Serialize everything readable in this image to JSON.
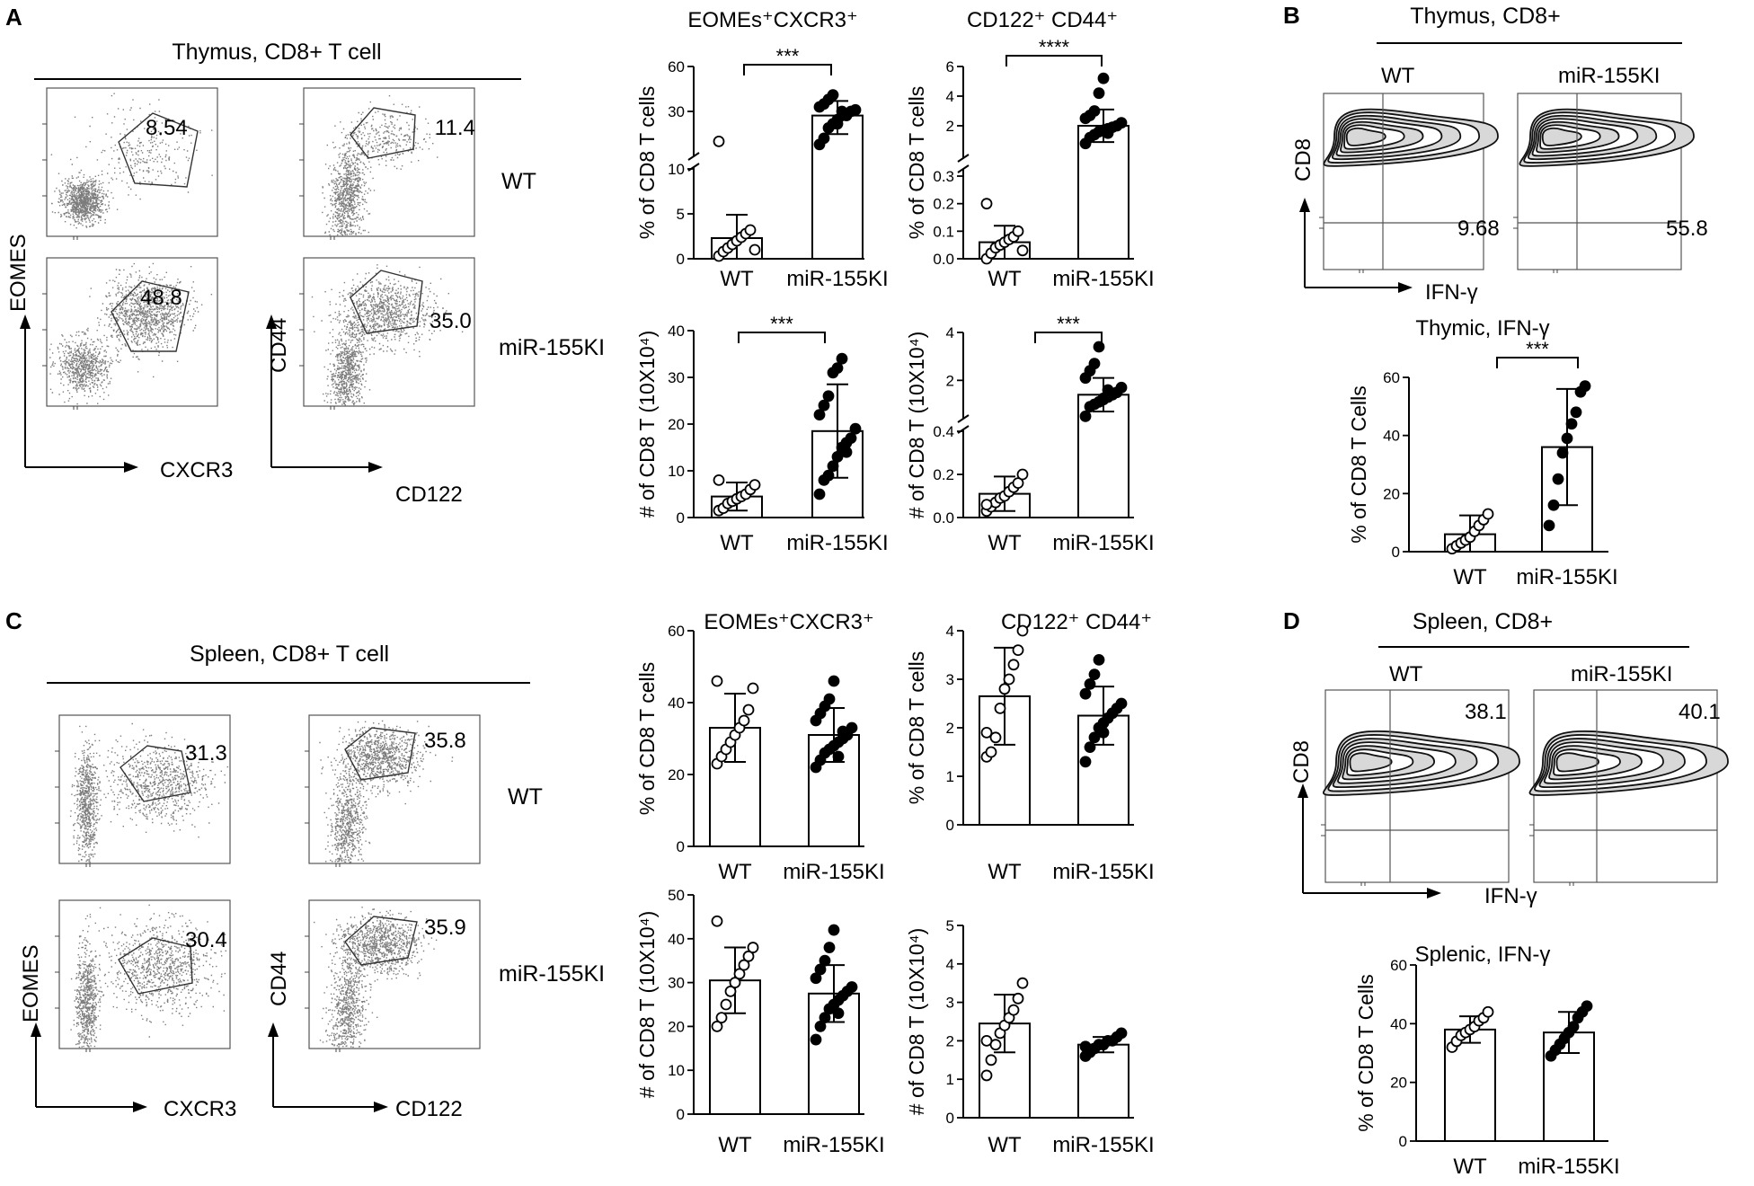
{
  "panels": {
    "A": {
      "letter": "A",
      "title": "Thymus, CD8+ T cell",
      "row_labels": [
        "WT",
        "miR-155KI"
      ],
      "flow_left": {
        "y_axis": "EOMES",
        "x_axis": "CXCR3",
        "gate_values": [
          "8.54",
          "48.8"
        ]
      },
      "flow_right": {
        "y_axis": "CD44",
        "x_axis": "CD122",
        "gate_values": [
          "11.4",
          "35.0"
        ]
      }
    },
    "B": {
      "letter": "B",
      "title": "Thymus,  CD8+",
      "columns": [
        "WT",
        "miR-155KI"
      ],
      "y_axis": "CD8",
      "x_axis": "IFN-γ",
      "quadrant_values": [
        "9.68",
        "55.8"
      ]
    },
    "C": {
      "letter": "C",
      "title": "Spleen, CD8+ T cell",
      "row_labels": [
        "WT",
        "miR-155KI"
      ],
      "flow_left": {
        "y_axis": "EOMES",
        "x_axis": "CXCR3",
        "gate_values": [
          "31.3",
          "30.4"
        ]
      },
      "flow_right": {
        "y_axis": "CD44",
        "x_axis": "CD122",
        "gate_values": [
          "35.8",
          "35.9"
        ]
      }
    },
    "D": {
      "letter": "D",
      "title": "Spleen,  CD8+",
      "columns": [
        "WT",
        "miR-155KI"
      ],
      "y_axis": "CD8",
      "x_axis": "IFN-γ",
      "quadrant_values": [
        "38.1",
        "40.1"
      ]
    }
  },
  "chart_data": [
    {
      "id": "A-pct-eomes",
      "type": "bar",
      "title": "EOMEs⁺CXCR3⁺",
      "ylabel": "% of CD8 T cells",
      "categories": [
        "WT",
        "miR-155KI"
      ],
      "significance": "***",
      "axis_break": true,
      "y_ticks": [
        "0",
        "5",
        "10",
        "30",
        "60"
      ],
      "series": [
        {
          "group": "WT",
          "mean": 2.3,
          "sd": 2.6,
          "points": [
            0.3,
            0.8,
            1.2,
            1.6,
            2.0,
            2.4,
            2.8,
            3.2,
            1.0,
            15.5
          ]
        },
        {
          "group": "miR-155KI",
          "mean": 28,
          "sd": 9,
          "points": [
            14,
            17,
            22,
            24,
            26,
            28,
            28,
            30,
            31,
            33,
            35,
            38,
            41,
            24,
            30
          ]
        }
      ]
    },
    {
      "id": "A-pct-cd122",
      "type": "bar",
      "title": "CD122⁺ CD44⁺",
      "ylabel": "% of CD8 T cells",
      "categories": [
        "WT",
        "miR-155KI"
      ],
      "significance": "****",
      "axis_break": true,
      "y_ticks": [
        "0.0",
        "0.1",
        "0.2",
        "0.3",
        "2",
        "4",
        "6"
      ],
      "series": [
        {
          "group": "WT",
          "mean": 0.06,
          "sd": 0.06,
          "points": [
            0.0,
            0.02,
            0.04,
            0.05,
            0.06,
            0.07,
            0.08,
            0.1,
            0.03,
            0.2
          ]
        },
        {
          "group": "miR-155KI",
          "mean": 2.0,
          "sd": 1.1,
          "points": [
            0.8,
            1.2,
            1.4,
            1.6,
            1.7,
            1.8,
            1.9,
            2.0,
            2.2,
            2.5,
            2.7,
            3.0,
            4.2,
            5.2,
            1.5
          ]
        }
      ]
    },
    {
      "id": "A-num-eomes",
      "type": "bar",
      "title": "",
      "ylabel": "# of CD8 T (10X10⁴)",
      "categories": [
        "WT",
        "miR-155KI"
      ],
      "significance": "***",
      "axis_break": false,
      "y_ticks": [
        "0",
        "10",
        "20",
        "30",
        "40"
      ],
      "series": [
        {
          "group": "WT",
          "mean": 4.5,
          "sd": 3.0,
          "points": [
            1.5,
            2,
            3,
            3.5,
            4,
            4.5,
            5,
            6,
            7,
            8
          ]
        },
        {
          "group": "miR-155KI",
          "mean": 18.5,
          "sd": 10,
          "points": [
            5,
            8,
            9,
            11,
            13,
            15,
            16,
            17,
            19,
            22,
            24,
            26,
            31,
            32,
            34,
            14
          ]
        }
      ]
    },
    {
      "id": "A-num-cd122",
      "type": "bar",
      "title": "",
      "ylabel": "# of CD8 T (10X10⁴)",
      "categories": [
        "WT",
        "miR-155KI"
      ],
      "significance": "***",
      "axis_break": true,
      "y_ticks": [
        "0.0",
        "0.2",
        "0.4",
        "2",
        "4"
      ],
      "series": [
        {
          "group": "WT",
          "mean": 0.11,
          "sd": 0.08,
          "points": [
            0.03,
            0.05,
            0.07,
            0.09,
            0.1,
            0.12,
            0.14,
            0.16,
            0.2,
            0.06
          ]
        },
        {
          "group": "miR-155KI",
          "mean": 1.4,
          "sd": 0.7,
          "points": [
            0.5,
            0.9,
            1.0,
            1.1,
            1.2,
            1.3,
            1.4,
            1.5,
            1.7,
            2.1,
            2.4,
            2.7,
            3.4,
            1.25,
            1.6
          ]
        }
      ]
    },
    {
      "id": "B-ifng",
      "type": "bar",
      "title": "Thymic, IFN-γ",
      "ylabel": "% of CD8 T Cells",
      "categories": [
        "WT",
        "miR-155KI"
      ],
      "significance": "***",
      "axis_break": false,
      "y_ticks": [
        "0",
        "20",
        "40",
        "60"
      ],
      "series": [
        {
          "group": "WT",
          "mean": 6,
          "sd": 6.5,
          "points": [
            1,
            2,
            3,
            4,
            5,
            7,
            9,
            11,
            13
          ]
        },
        {
          "group": "miR-155KI",
          "mean": 36,
          "sd": 20,
          "points": [
            9,
            16,
            25,
            34,
            39,
            44,
            48,
            55,
            57
          ]
        }
      ]
    },
    {
      "id": "C-pct-eomes",
      "type": "bar",
      "title": "EOMEs⁺CXCR3⁺",
      "ylabel": "% of CD8 T cells",
      "categories": [
        "WT",
        "miR-155KI"
      ],
      "significance": "",
      "axis_break": false,
      "y_ticks": [
        "0",
        "20",
        "40",
        "60"
      ],
      "series": [
        {
          "group": "WT",
          "mean": 33,
          "sd": 9.5,
          "points": [
            23,
            25,
            27,
            29,
            31,
            33,
            35,
            38,
            44,
            46
          ]
        },
        {
          "group": "miR-155KI",
          "mean": 31,
          "sd": 7.5,
          "points": [
            22,
            24,
            26,
            27,
            28,
            29,
            30,
            31,
            33,
            35,
            37,
            39,
            41,
            46,
            25,
            32
          ]
        }
      ]
    },
    {
      "id": "C-pct-cd122",
      "type": "bar",
      "title": "CD122⁺ CD44⁺",
      "ylabel": "% of CD8 T cells",
      "categories": [
        "WT",
        "miR-155KI"
      ],
      "significance": "",
      "axis_break": false,
      "y_ticks": [
        "0",
        "1",
        "2",
        "3",
        "4"
      ],
      "series": [
        {
          "group": "WT",
          "mean": 2.65,
          "sd": 1.0,
          "points": [
            1.4,
            1.5,
            1.8,
            2.4,
            2.8,
            3.0,
            3.3,
            3.6,
            4.0,
            1.9
          ]
        },
        {
          "group": "miR-155KI",
          "mean": 2.25,
          "sd": 0.6,
          "points": [
            1.3,
            1.6,
            1.8,
            2.0,
            2.1,
            2.2,
            2.3,
            2.4,
            2.5,
            2.7,
            2.9,
            3.1,
            3.4,
            1.9
          ]
        }
      ]
    },
    {
      "id": "C-num-eomes",
      "type": "bar",
      "title": "",
      "ylabel": "# of CD8 T (10X10⁴)",
      "categories": [
        "WT",
        "miR-155KI"
      ],
      "significance": "",
      "axis_break": false,
      "y_ticks": [
        "0",
        "10",
        "20",
        "30",
        "40",
        "50"
      ],
      "series": [
        {
          "group": "WT",
          "mean": 30.5,
          "sd": 7.5,
          "points": [
            20,
            22,
            25,
            28,
            30,
            32,
            34,
            36,
            38,
            44
          ]
        },
        {
          "group": "miR-155KI",
          "mean": 27.5,
          "sd": 6.5,
          "points": [
            17,
            20,
            22,
            24,
            25,
            26,
            27,
            28,
            29,
            31,
            33,
            35,
            38,
            42,
            23
          ]
        }
      ]
    },
    {
      "id": "C-num-cd122",
      "type": "bar",
      "title": "",
      "ylabel": "# of CD8 T (10X10⁴)",
      "categories": [
        "WT",
        "miR-155KI"
      ],
      "significance": "",
      "axis_break": false,
      "y_ticks": [
        "0",
        "1",
        "2",
        "3",
        "4",
        "5"
      ],
      "series": [
        {
          "group": "WT",
          "mean": 2.45,
          "sd": 0.75,
          "points": [
            1.1,
            1.5,
            1.9,
            2.2,
            2.4,
            2.6,
            2.8,
            3.1,
            3.5,
            2.0
          ]
        },
        {
          "group": "miR-155KI",
          "mean": 1.9,
          "sd": 0.2,
          "points": [
            1.6,
            1.7,
            1.8,
            1.9,
            1.9,
            2.0,
            2.0,
            2.1,
            2.2,
            1.85
          ]
        }
      ]
    },
    {
      "id": "D-ifng",
      "type": "bar",
      "title": "Splenic, IFN-γ",
      "ylabel": "% of CD8 T Cells",
      "categories": [
        "WT",
        "miR-155KI"
      ],
      "significance": "",
      "axis_break": false,
      "y_ticks": [
        "0",
        "20",
        "40",
        "60"
      ],
      "series": [
        {
          "group": "WT",
          "mean": 38,
          "sd": 4.5,
          "points": [
            32,
            34,
            36,
            37,
            38,
            39,
            41,
            42,
            44
          ]
        },
        {
          "group": "miR-155KI",
          "mean": 37,
          "sd": 7,
          "points": [
            29,
            31,
            33,
            35,
            37,
            39,
            42,
            44,
            46
          ]
        }
      ]
    }
  ]
}
